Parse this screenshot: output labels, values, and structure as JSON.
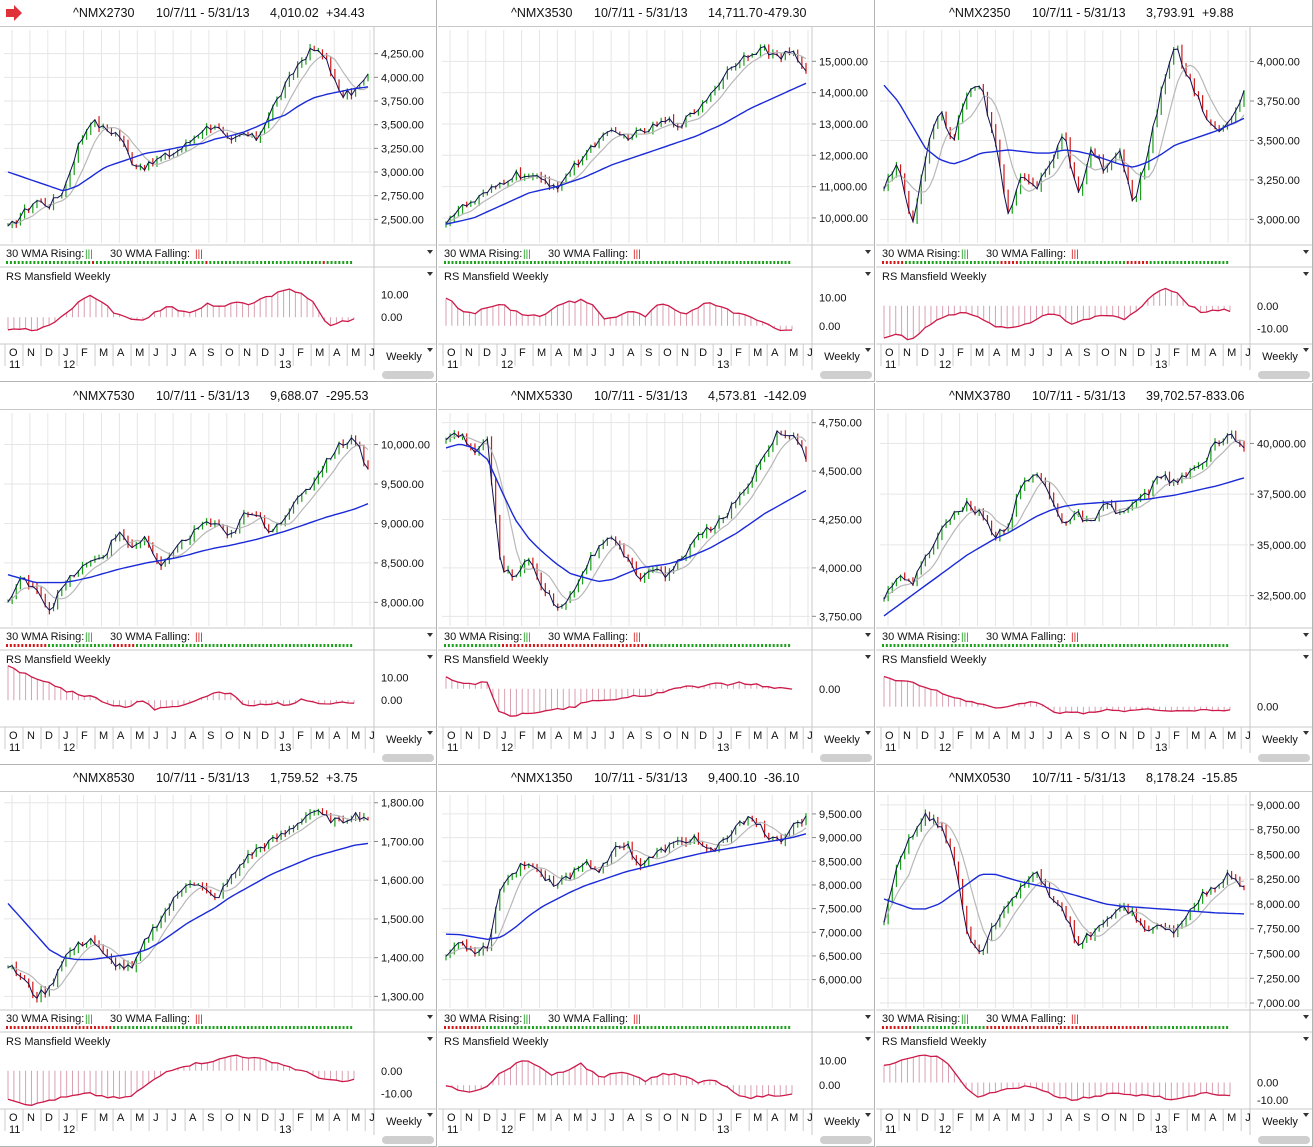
{
  "chart_data": [
    {
      "type": "line",
      "ticker": "^NMX2730",
      "range": "10/7/11 - 5/31/13",
      "last": "4,010.02",
      "change": "+34.43",
      "ylim": [
        2250,
        4500
      ],
      "yticks": [
        "2,500.00",
        "2,750.00",
        "3,000.00",
        "3,250.00",
        "3,500.00",
        "3,750.00",
        "4,000.00",
        "4,250.00"
      ],
      "close": [
        2400,
        2550,
        2700,
        2650,
        2800,
        3250,
        3550,
        3450,
        3400,
        3100,
        3050,
        3150,
        3200,
        3300,
        3450,
        3500,
        3300,
        3400,
        3350,
        3650,
        3900,
        4150,
        4300,
        4200,
        3800,
        3850,
        4010
      ],
      "ma30": [
        3000,
        2950,
        2900,
        2850,
        2800,
        2850,
        2950,
        3050,
        3100,
        3150,
        3200,
        3220,
        3250,
        3280,
        3300,
        3350,
        3380,
        3420,
        3480,
        3550,
        3600,
        3700,
        3780,
        3820,
        3850,
        3880,
        3900
      ],
      "rs": [
        -5,
        -5,
        -6,
        -4,
        0,
        5,
        10,
        7,
        2,
        0,
        -2,
        2,
        5,
        3,
        2,
        6,
        4,
        7,
        5,
        8,
        10,
        12,
        11,
        6,
        -4,
        -2,
        -1
      ],
      "rs_ticks": [
        "10.00",
        "0.00"
      ],
      "rs_range": [
        -10,
        15
      ],
      "wma_trend": "ggggggggggggggggggggggrggggggggggggggggggggggggggggrgggggggggggggggggggggggggggggrggggggg"
    },
    {
      "type": "line",
      "ticker": "^NMX3530",
      "range": "10/7/11 - 5/31/13",
      "last": "14,711.70",
      "change": "-479.30",
      "ylim": [
        9200,
        16000
      ],
      "yticks": [
        "10,000.00",
        "11,000.00",
        "12,000.00",
        "13,000.00",
        "14,000.00",
        "15,000.00"
      ],
      "close": [
        9900,
        10300,
        10500,
        10800,
        11100,
        11400,
        11300,
        11200,
        11000,
        11500,
        12000,
        12500,
        12700,
        12600,
        12700,
        12900,
        13100,
        13000,
        13400,
        13900,
        14500,
        15000,
        15300,
        15400,
        15100,
        15300,
        14711
      ],
      "ma30": [
        9800,
        9900,
        10000,
        10200,
        10400,
        10600,
        10800,
        10900,
        11000,
        11150,
        11300,
        11500,
        11700,
        11850,
        12000,
        12150,
        12300,
        12450,
        12600,
        12800,
        13000,
        13250,
        13500,
        13700,
        13900,
        14100,
        14300
      ],
      "rs": [
        10,
        6,
        4,
        6,
        8,
        5,
        4,
        3,
        6,
        8,
        9,
        7,
        2,
        4,
        5,
        3,
        8,
        6,
        4,
        7,
        8,
        6,
        4,
        3,
        1,
        -1,
        -2
      ],
      "rs_ticks": [
        "10.00",
        "0.00"
      ],
      "rs_range": [
        -5,
        15
      ],
      "wma_trend": "ggggggggggggggggggggggggggggggggggggggggggggggggggggggggggggggggggggggggggggggggggggggggggggg"
    },
    {
      "type": "line",
      "ticker": "^NMX2350",
      "range": "10/7/11 - 5/31/13",
      "last": "3,793.91",
      "change": "+9.88",
      "ylim": [
        2850,
        4200
      ],
      "yticks": [
        "3,000.00",
        "3,250.00",
        "3,500.00",
        "3,750.00",
        "4,000.00"
      ],
      "close": [
        3200,
        3350,
        2950,
        3400,
        3700,
        3500,
        3800,
        3850,
        3500,
        3000,
        3300,
        3200,
        3350,
        3550,
        3150,
        3450,
        3300,
        3450,
        3100,
        3400,
        3800,
        4100,
        3900,
        3700,
        3550,
        3650,
        3794
      ],
      "ma30": [
        3850,
        3750,
        3600,
        3450,
        3380,
        3350,
        3380,
        3420,
        3430,
        3440,
        3430,
        3420,
        3420,
        3440,
        3430,
        3410,
        3380,
        3350,
        3330,
        3360,
        3410,
        3470,
        3500,
        3530,
        3560,
        3600,
        3640
      ],
      "rs": [
        -14,
        -12,
        -15,
        -10,
        -6,
        -4,
        -2,
        -5,
        -8,
        -10,
        -9,
        -7,
        -4,
        -3,
        -8,
        -6,
        -5,
        -4,
        -6,
        -2,
        4,
        8,
        6,
        0,
        -3,
        -2,
        -2
      ],
      "rs_ticks": [
        "0.00",
        "-10.00"
      ],
      "rs_range": [
        -15,
        10
      ],
      "wma_trend": "rrrrrrgggggggggggggggggggggggggrrrrrggggggggggggggggggggggggggggrrrrrrggggggggggggggggggggg"
    },
    {
      "type": "line",
      "ticker": "^NMX7530",
      "range": "10/7/11 - 5/31/13",
      "last": "9,688.07",
      "change": "-295.53",
      "ylim": [
        7700,
        10400
      ],
      "yticks": [
        "8,000.00",
        "8,500.00",
        "9,000.00",
        "9,500.00",
        "10,000.00"
      ],
      "close": [
        8000,
        8300,
        8200,
        7900,
        8200,
        8400,
        8500,
        8600,
        8900,
        8700,
        8800,
        8400,
        8700,
        8800,
        9000,
        9000,
        8800,
        9100,
        9100,
        8900,
        9100,
        9300,
        9500,
        9800,
        10000,
        10100,
        9688
      ],
      "ma30": [
        8350,
        8300,
        8250,
        8250,
        8250,
        8280,
        8320,
        8370,
        8420,
        8460,
        8500,
        8530,
        8560,
        8600,
        8650,
        8690,
        8720,
        8760,
        8800,
        8850,
        8900,
        8960,
        9020,
        9080,
        9130,
        9180,
        9250
      ],
      "rs": [
        15,
        12,
        10,
        8,
        5,
        3,
        2,
        0,
        -2,
        -3,
        0,
        -4,
        -3,
        -2,
        -1,
        2,
        4,
        2,
        -3,
        -2,
        -1,
        -2,
        0,
        -1,
        -2,
        -1,
        -1
      ],
      "rs_ticks": [
        "10.00",
        "0.00"
      ],
      "rs_range": [
        -10,
        15
      ],
      "wma_trend": "rrrrrrrrrrrgggggggggggggggggrrrrrrggggggggggggggggggggggggggggggggggggggggggggggggggggggggg"
    },
    {
      "type": "line",
      "ticker": "^NMX5330",
      "range": "10/7/11 - 5/31/13",
      "last": "4,573.81",
      "change": "-142.09",
      "ylim": [
        3700,
        4800
      ],
      "yticks": [
        "3,750.00",
        "4,000.00",
        "4,250.00",
        "4,500.00",
        "4,750.00"
      ],
      "close": [
        4650,
        4700,
        4600,
        4650,
        4000,
        3950,
        4050,
        3900,
        3800,
        3850,
        4000,
        4100,
        4150,
        4050,
        3950,
        4000,
        3950,
        4050,
        4150,
        4200,
        4250,
        4350,
        4450,
        4600,
        4700,
        4700,
        4574
      ],
      "ma30": [
        4620,
        4640,
        4620,
        4560,
        4400,
        4250,
        4150,
        4080,
        4020,
        3970,
        3950,
        3930,
        3940,
        3970,
        4000,
        4010,
        4020,
        4040,
        4070,
        4100,
        4140,
        4180,
        4230,
        4280,
        4320,
        4360,
        4400
      ],
      "rs": [
        5,
        3,
        2,
        4,
        -10,
        -12,
        -11,
        -10,
        -9,
        -9,
        -7,
        -5,
        -5,
        -4,
        -3,
        -3,
        -2,
        0,
        1,
        1,
        2,
        2,
        3,
        2,
        1,
        0,
        0
      ],
      "rs_ticks": [
        "0.00"
      ],
      "rs_range": [
        -15,
        10
      ],
      "wma_trend": "gggggggggggggggrrrrrrrrrrrrrrrrrrrrrrrrrrrrrrrrrrrrrrggggggggggggggggggggggggggggggggggggg"
    },
    {
      "type": "line",
      "ticker": "^NMX3780",
      "range": "10/7/11 - 5/31/13",
      "last": "39,702.57",
      "change": "-833.06",
      "ylim": [
        31000,
        41500
      ],
      "yticks": [
        "32,500.00",
        "35,000.00",
        "37,500.00",
        "40,000.00"
      ],
      "close": [
        32500,
        33500,
        33000,
        34500,
        35500,
        36500,
        37000,
        36500,
        35500,
        36000,
        38000,
        38500,
        37500,
        36000,
        36500,
        36000,
        37000,
        36500,
        37000,
        37500,
        38500,
        38000,
        38500,
        39000,
        40000,
        40500,
        39703
      ],
      "ma30": [
        31500,
        32000,
        32500,
        33000,
        33500,
        34000,
        34500,
        34900,
        35300,
        35600,
        36000,
        36400,
        36700,
        36900,
        37000,
        37050,
        37100,
        37150,
        37200,
        37250,
        37350,
        37450,
        37600,
        37750,
        37900,
        38100,
        38300
      ],
      "rs": [
        18,
        16,
        15,
        12,
        10,
        6,
        4,
        2,
        0,
        -1,
        2,
        3,
        1,
        -4,
        -3,
        -4,
        -3,
        -2,
        -3,
        -2,
        -1,
        -3,
        -2,
        -3,
        -2,
        -2,
        -2
      ],
      "rs_ticks": [
        "0.00"
      ],
      "rs_range": [
        -10,
        25
      ],
      "wma_trend": "ggggggggggggggggggggggggggggggggggggggggggggggggggggggggggggggggggggggggggggggggggggggggggg"
    },
    {
      "type": "line",
      "ticker": "^NMX8530",
      "range": "10/7/11 - 5/31/13",
      "last": "1,759.52",
      "change": "+3.75",
      "ylim": [
        1270,
        1820
      ],
      "yticks": [
        "1,300.00",
        "1,400.00",
        "1,500.00",
        "1,600.00",
        "1,700.00",
        "1,800.00"
      ],
      "close": [
        1380,
        1350,
        1300,
        1320,
        1400,
        1430,
        1450,
        1400,
        1380,
        1370,
        1450,
        1500,
        1550,
        1600,
        1580,
        1550,
        1600,
        1650,
        1680,
        1700,
        1720,
        1750,
        1780,
        1760,
        1750,
        1770,
        1760
      ],
      "ma30": [
        1540,
        1500,
        1460,
        1420,
        1400,
        1395,
        1395,
        1400,
        1405,
        1410,
        1420,
        1440,
        1465,
        1490,
        1510,
        1530,
        1555,
        1575,
        1595,
        1615,
        1630,
        1645,
        1660,
        1670,
        1680,
        1690,
        1695
      ],
      "rs": [
        -12,
        -14,
        -15,
        -13,
        -12,
        -11,
        -10,
        -11,
        -12,
        -12,
        -8,
        -4,
        0,
        2,
        3,
        4,
        5,
        7,
        6,
        5,
        4,
        2,
        0,
        -2,
        -4,
        -5,
        -4
      ],
      "rs_ticks": [
        "0.00",
        "-10.00"
      ],
      "rs_range": [
        -15,
        10
      ],
      "wma_trend": "rrrrrrrrrrrrrrrrrrrrrrrrrrrrggggggggggggggggggggggggggggggggggggggggggggggggggggggggggggggg"
    },
    {
      "type": "line",
      "ticker": "^NMX1350",
      "range": "10/7/11 - 5/31/13",
      "last": "9,400.10",
      "change": "-36.10",
      "ylim": [
        5400,
        9900
      ],
      "yticks": [
        "6,000.00",
        "6,500.00",
        "7,000.00",
        "7,500.00",
        "8,000.00",
        "8,500.00",
        "9,000.00",
        "9,500.00"
      ],
      "close": [
        6500,
        6800,
        6600,
        6700,
        8000,
        8300,
        8500,
        8200,
        8000,
        8200,
        8500,
        8300,
        8700,
        8900,
        8400,
        8600,
        8800,
        8900,
        9000,
        8700,
        8900,
        9200,
        9500,
        9100,
        8900,
        9200,
        9400
      ],
      "ma30": [
        6960,
        6950,
        6900,
        6850,
        6900,
        7100,
        7350,
        7550,
        7700,
        7850,
        7980,
        8080,
        8180,
        8280,
        8350,
        8420,
        8500,
        8570,
        8640,
        8700,
        8750,
        8800,
        8850,
        8900,
        8950,
        9000,
        9080
      ],
      "rs": [
        0,
        -2,
        -3,
        -1,
        5,
        8,
        10,
        7,
        4,
        6,
        9,
        5,
        3,
        6,
        4,
        2,
        4,
        5,
        3,
        1,
        2,
        0,
        -4,
        -5,
        -4,
        -5,
        -4
      ],
      "rs_ticks": [
        "10.00",
        "0.00"
      ],
      "rs_range": [
        -8,
        15
      ],
      "wma_trend": "rrrrrrrrrrggggggggggggggggggggggggggggggggggggggggggggggggggggggggggggggggggggggggggggggggg"
    },
    {
      "type": "line",
      "ticker": "^NMX0530",
      "range": "10/7/11 - 5/31/13",
      "last": "8,178.24",
      "change": "-15.85",
      "ylim": [
        6950,
        9100
      ],
      "yticks": [
        "7,000.00",
        "7,250.00",
        "7,500.00",
        "7,750.00",
        "8,000.00",
        "8,250.00",
        "8,500.00",
        "8,750.00",
        "9,000.00"
      ],
      "close": [
        7800,
        8400,
        8700,
        8900,
        8800,
        8500,
        7700,
        7500,
        7800,
        8000,
        8200,
        8300,
        8100,
        7900,
        7600,
        7700,
        7800,
        8000,
        7900,
        7700,
        7800,
        7700,
        7900,
        8100,
        8200,
        8300,
        8178
      ],
      "ma30": [
        8050,
        8000,
        7950,
        7950,
        8000,
        8100,
        8200,
        8300,
        8300,
        8260,
        8220,
        8190,
        8160,
        8120,
        8080,
        8040,
        8000,
        7980,
        7970,
        7960,
        7950,
        7940,
        7930,
        7920,
        7910,
        7905,
        7900
      ],
      "rs": [
        10,
        12,
        14,
        16,
        15,
        10,
        -2,
        -8,
        -6,
        -4,
        -3,
        -2,
        -5,
        -8,
        -10,
        -9,
        -8,
        -6,
        -7,
        -8,
        -7,
        -9,
        -10,
        -8,
        -6,
        -7,
        -7
      ],
      "rs_ticks": [
        "0.00",
        "-10.00"
      ],
      "rs_range": [
        -13,
        20
      ],
      "wma_trend": "rrrrrrrrgggggggggggggggggggrrrrrrrrrrrrrrrrrrrrrrrrrrrrrrrrrrrrrrrrrrggggggggggggggggggggg"
    }
  ],
  "labels": {
    "wma_rising": "30 WMA Rising:",
    "wma_falling": "30 WMA Falling:",
    "rs_title": "RS Mansfield Weekly",
    "period": "Weekly",
    "months": [
      "O",
      "N",
      "D",
      "J",
      "F",
      "M",
      "A",
      "M",
      "J",
      "J",
      "A",
      "S",
      "O",
      "N",
      "D",
      "J",
      "F",
      "M",
      "A",
      "M",
      "J"
    ],
    "years": [
      {
        "label": "11",
        "at": 0
      },
      {
        "label": "12",
        "at": 3
      },
      {
        "label": "13",
        "at": 15
      }
    ]
  },
  "colors": {
    "up": "#1aa01a",
    "down": "#d01818",
    "price": "#101050",
    "ma30": "#1a2ad8",
    "ma10": "#b8b8b8",
    "rs": "#cc1a4a",
    "arrow": "#e0303a"
  }
}
